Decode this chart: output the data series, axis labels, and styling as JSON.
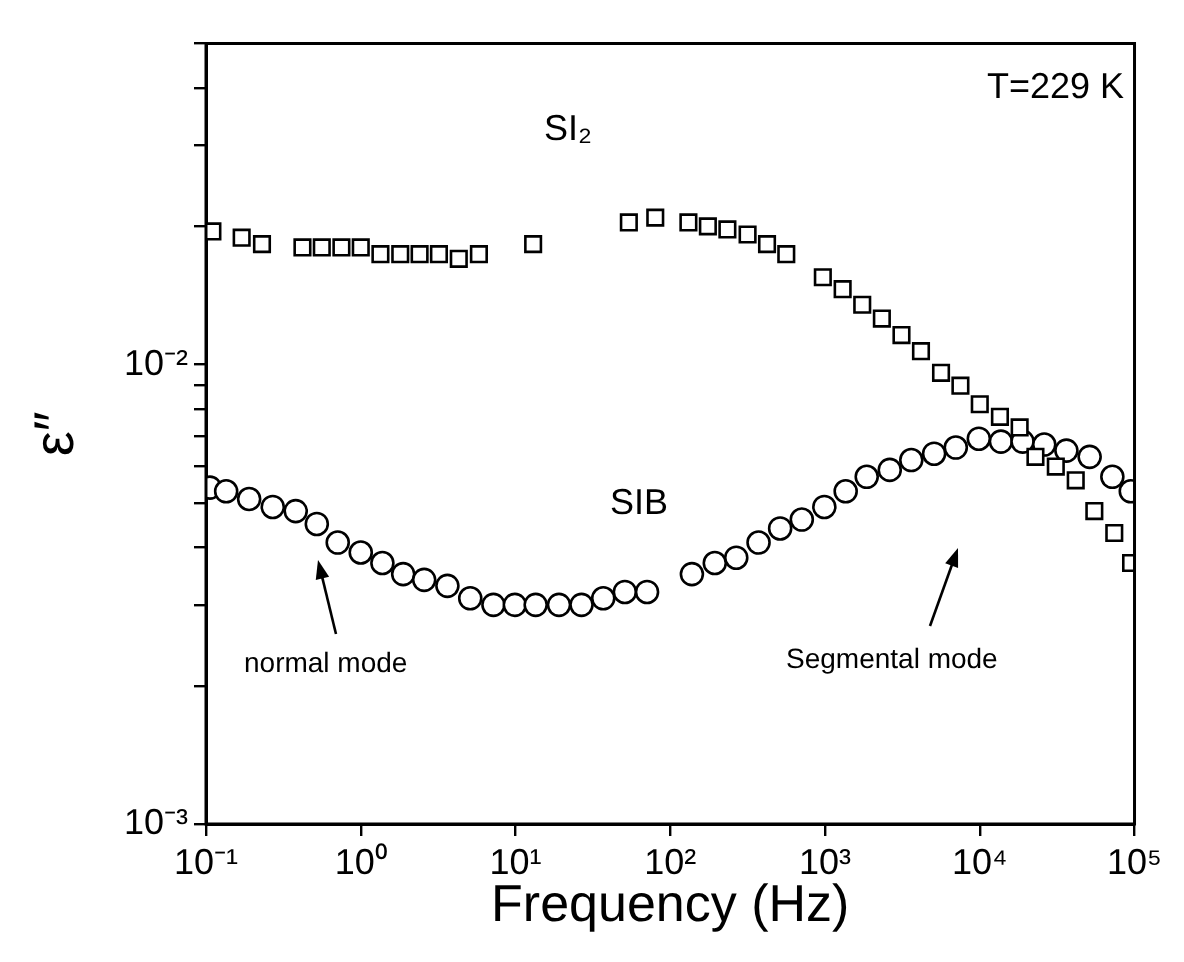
{
  "chart_data": {
    "type": "scatter",
    "xlabel": "Frequency (Hz)",
    "ylabel": "ε″",
    "log": "xy",
    "grid": false,
    "legend": false,
    "line_style": "none",
    "xlim": [
      0.1,
      100000
    ],
    "xticks": [
      {
        "value": 0.1,
        "label": "10⁻¹"
      },
      {
        "value": 1,
        "label": "10⁰"
      },
      {
        "value": 10,
        "label": "10¹"
      },
      {
        "value": 100,
        "label": "10²"
      },
      {
        "value": 1000,
        "label": "10³"
      },
      {
        "value": 10000,
        "label": "10⁴"
      },
      {
        "value": 100000,
        "label": "10⁵"
      }
    ],
    "ylim": [
      0.001,
      0.05
    ],
    "yticks": [
      {
        "value": 0.001,
        "label": "10⁻³"
      },
      {
        "value": 0.002,
        "label": null
      },
      {
        "value": 0.003,
        "label": null
      },
      {
        "value": 0.004,
        "label": null
      },
      {
        "value": 0.005,
        "label": null
      },
      {
        "value": 0.006,
        "label": null
      },
      {
        "value": 0.007,
        "label": null
      },
      {
        "value": 0.008,
        "label": null
      },
      {
        "value": 0.009,
        "label": null
      },
      {
        "value": 0.01,
        "label": "10⁻²"
      },
      {
        "value": 0.02,
        "label": null
      },
      {
        "value": 0.03,
        "label": null
      },
      {
        "value": 0.04,
        "label": null
      },
      {
        "value": 0.05,
        "label": null
      }
    ],
    "annotations": [
      "T=229 K",
      "normal mode",
      "Segmental mode"
    ],
    "series": [
      {
        "name": "SI₂",
        "color": "#000000",
        "marker": "square",
        "x": [
          0.11,
          0.17,
          0.23,
          0.42,
          0.56,
          0.75,
          1.0,
          1.34,
          1.8,
          2.4,
          3.2,
          4.3,
          5.8,
          13,
          54,
          80,
          131,
          175,
          234,
          316,
          422,
          562,
          968,
          1300,
          1740,
          2330,
          3120,
          4170,
          5620,
          7500,
          10000,
          13500,
          18100,
          22900,
          31000,
          41700,
          55000,
          74000,
          95000
        ],
        "values": [
          0.0195,
          0.0189,
          0.0183,
          0.018,
          0.018,
          0.018,
          0.018,
          0.0174,
          0.0174,
          0.0174,
          0.0174,
          0.017,
          0.0174,
          0.0183,
          0.0204,
          0.0209,
          0.0204,
          0.02,
          0.0197,
          0.0192,
          0.0183,
          0.0174,
          0.0155,
          0.0146,
          0.0135,
          0.0126,
          0.0116,
          0.0107,
          0.0096,
          0.009,
          0.0082,
          0.0077,
          0.0073,
          0.0063,
          0.006,
          0.0056,
          0.0048,
          0.0043,
          0.0037
        ]
      },
      {
        "name": "SIB",
        "color": "#000000",
        "marker": "circle",
        "x": [
          0.106,
          0.135,
          0.19,
          0.27,
          0.38,
          0.52,
          0.71,
          1.0,
          1.38,
          1.88,
          2.57,
          3.63,
          5.1,
          7.2,
          9.9,
          13.5,
          19.1,
          26.7,
          36.9,
          50.9,
          70.8,
          138,
          194,
          267,
          372,
          513,
          708,
          990,
          1360,
          1860,
          2620,
          3610,
          5070,
          7000,
          9860,
          13700,
          18900,
          26100,
          36300,
          51300,
          71900,
          94600
        ],
        "values": [
          0.0054,
          0.0053,
          0.0051,
          0.0049,
          0.0048,
          0.0045,
          0.0041,
          0.0039,
          0.0037,
          0.0035,
          0.0034,
          0.0033,
          0.0031,
          0.003,
          0.003,
          0.003,
          0.003,
          0.003,
          0.0031,
          0.0032,
          0.0032,
          0.0035,
          0.0037,
          0.0038,
          0.0041,
          0.0044,
          0.0046,
          0.0049,
          0.0053,
          0.0057,
          0.0059,
          0.0062,
          0.0064,
          0.0066,
          0.0069,
          0.0068,
          0.0068,
          0.0067,
          0.0065,
          0.0063,
          0.0057,
          0.0053
        ]
      }
    ]
  }
}
